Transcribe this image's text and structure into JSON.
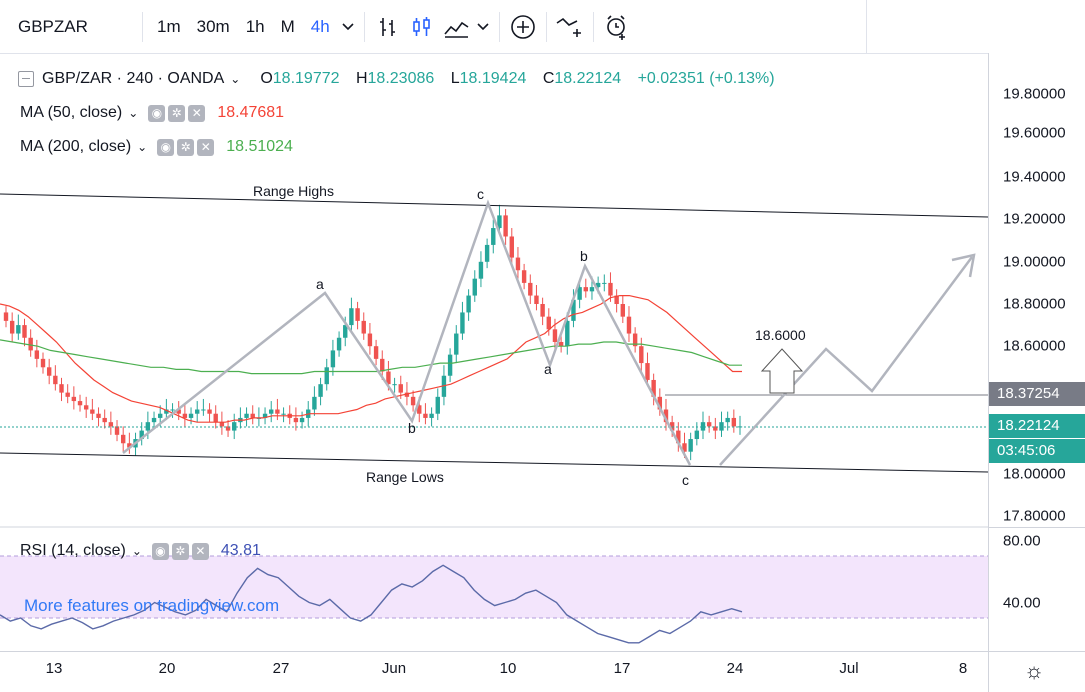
{
  "toolbar": {
    "symbol": "GBPZAR",
    "intervals": [
      "1m",
      "30m",
      "1h",
      "M",
      "4h"
    ],
    "active_interval": "4h",
    "icons": [
      "candles-icon",
      "candlestick-icon",
      "area-chart-icon",
      "chevron-down-icon",
      "add-indicator-icon",
      "compare-icon",
      "alert-icon"
    ]
  },
  "legend": {
    "title": "GBP/ZAR · 240 · OANDA",
    "open_label": "O",
    "open": "18.19772",
    "high_label": "H",
    "high": "18.23086",
    "low_label": "L",
    "low": "18.19424",
    "close_label": "C",
    "close": "18.22124",
    "change": "+0.02351 (+0.13%)",
    "ma50_label": "MA (50, close)",
    "ma50_value": "18.47681",
    "ma200_label": "MA (200, close)",
    "ma200_value": "18.51024"
  },
  "rsi": {
    "label": "RSI (14, close)",
    "value": "43.81",
    "ticks": [
      "80.00",
      "40.00"
    ]
  },
  "price_axis": {
    "ticks": [
      "19.80000",
      "19.60000",
      "19.40000",
      "19.20000",
      "19.00000",
      "18.80000",
      "18.60000",
      "18.00000",
      "17.80000"
    ],
    "level_label": "18.37254",
    "last_price": "18.22124",
    "countdown": "03:45:06"
  },
  "time_axis": {
    "ticks": [
      "13",
      "20",
      "27",
      "Jun",
      "10",
      "17",
      "24",
      "Jul",
      "8"
    ]
  },
  "annotations": {
    "range_highs": "Range Highs",
    "range_lows": "Range Lows",
    "target": "18.6000",
    "wave_labels": [
      "a",
      "b",
      "c",
      "a",
      "b",
      "c"
    ]
  },
  "colors": {
    "up": "#26a69a",
    "down": "#ef5350",
    "ma50": "#f44336",
    "ma200": "#4caf50",
    "rsi_band": "#f3e5fc",
    "accent": "#2962ff"
  },
  "watermark": "More features on tradingview.com",
  "chart_data": {
    "type": "candlestick",
    "symbol": "GBP/ZAR",
    "timeframe": "240",
    "ylim": [
      17.75,
      19.85
    ],
    "x_start": "2019-05-10",
    "closes": [
      18.72,
      18.66,
      18.7,
      18.64,
      18.58,
      18.54,
      18.5,
      18.46,
      18.42,
      18.38,
      18.36,
      18.34,
      18.32,
      18.3,
      18.28,
      18.26,
      18.24,
      18.22,
      18.18,
      18.14,
      18.12,
      18.16,
      18.2,
      18.24,
      18.26,
      18.28,
      18.3,
      18.3,
      18.28,
      18.26,
      18.28,
      18.3,
      18.3,
      18.28,
      18.24,
      18.22,
      18.2,
      18.24,
      18.26,
      18.28,
      18.26,
      18.26,
      18.28,
      18.3,
      18.28,
      18.28,
      18.26,
      18.24,
      18.26,
      18.3,
      18.36,
      18.42,
      18.5,
      18.58,
      18.64,
      18.7,
      18.78,
      18.72,
      18.66,
      18.6,
      18.54,
      18.48,
      18.42,
      18.42,
      18.38,
      18.36,
      18.32,
      18.28,
      18.26,
      18.28,
      18.36,
      18.46,
      18.56,
      18.66,
      18.76,
      18.84,
      18.92,
      19.0,
      19.08,
      19.16,
      19.22,
      19.12,
      19.02,
      18.96,
      18.9,
      18.84,
      18.8,
      18.74,
      18.68,
      18.62,
      18.6,
      18.72,
      18.82,
      18.88,
      18.86,
      18.88,
      18.9,
      18.9,
      18.84,
      18.8,
      18.74,
      18.66,
      18.6,
      18.52,
      18.44,
      18.36,
      18.3,
      18.24,
      18.2,
      18.14,
      18.1,
      18.16,
      18.2,
      18.24,
      18.22,
      18.2,
      18.24,
      18.26,
      18.22,
      18.22
    ],
    "ma50": [
      18.8,
      18.79,
      18.77,
      18.74,
      18.7,
      18.66,
      18.62,
      18.57,
      18.52,
      18.48,
      18.44,
      18.41,
      18.38,
      18.36,
      18.34,
      18.33,
      18.32,
      18.31,
      18.29,
      18.27,
      18.25,
      18.24,
      18.24,
      18.24,
      18.24,
      18.25,
      18.25,
      18.26,
      18.26,
      18.27,
      18.27,
      18.27,
      18.27,
      18.28,
      18.28,
      18.28,
      18.28,
      18.29,
      18.3,
      18.32,
      18.33,
      18.35,
      18.36,
      18.37,
      18.38,
      18.39,
      18.4,
      18.41,
      18.42,
      18.44,
      18.46,
      18.48,
      18.5,
      18.52,
      18.54,
      18.58,
      18.62,
      18.64,
      18.66,
      18.7,
      18.73,
      18.75,
      18.76,
      18.78,
      18.8,
      18.83,
      18.84,
      18.84,
      18.83,
      18.82,
      18.79,
      18.76,
      18.72,
      18.68,
      18.64,
      18.6,
      18.56,
      18.52,
      18.48,
      18.48
    ],
    "ma200": [
      18.63,
      18.62,
      18.61,
      18.6,
      18.58,
      18.57,
      18.56,
      18.55,
      18.54,
      18.53,
      18.52,
      18.51,
      18.5,
      18.5,
      18.49,
      18.49,
      18.48,
      18.48,
      18.48,
      18.48,
      18.47,
      18.47,
      18.47,
      18.47,
      18.47,
      18.48,
      18.48,
      18.48,
      18.48,
      18.48,
      18.48,
      18.49,
      18.5,
      18.5,
      18.51,
      18.52,
      18.52,
      18.53,
      18.54,
      18.55,
      18.56,
      18.57,
      18.58,
      18.59,
      18.6,
      18.6,
      18.61,
      18.61,
      18.62,
      18.62,
      18.61,
      18.61,
      18.6,
      18.59,
      18.58,
      18.57,
      18.55,
      18.53,
      18.51,
      18.51
    ],
    "rsi": [
      42,
      38,
      40,
      35,
      33,
      36,
      38,
      40,
      37,
      33,
      35,
      38,
      40,
      42,
      45,
      50,
      47,
      44,
      42,
      45,
      52,
      48,
      44,
      56,
      66,
      72,
      68,
      66,
      60,
      54,
      50,
      48,
      52,
      46,
      40,
      38,
      42,
      50,
      58,
      62,
      60,
      64,
      70,
      74,
      70,
      66,
      58,
      52,
      48,
      50,
      52,
      56,
      58,
      54,
      50,
      42,
      38,
      34,
      30,
      28,
      26,
      24,
      24,
      28,
      32,
      30,
      34,
      38,
      44,
      42,
      44,
      46,
      44
    ]
  }
}
